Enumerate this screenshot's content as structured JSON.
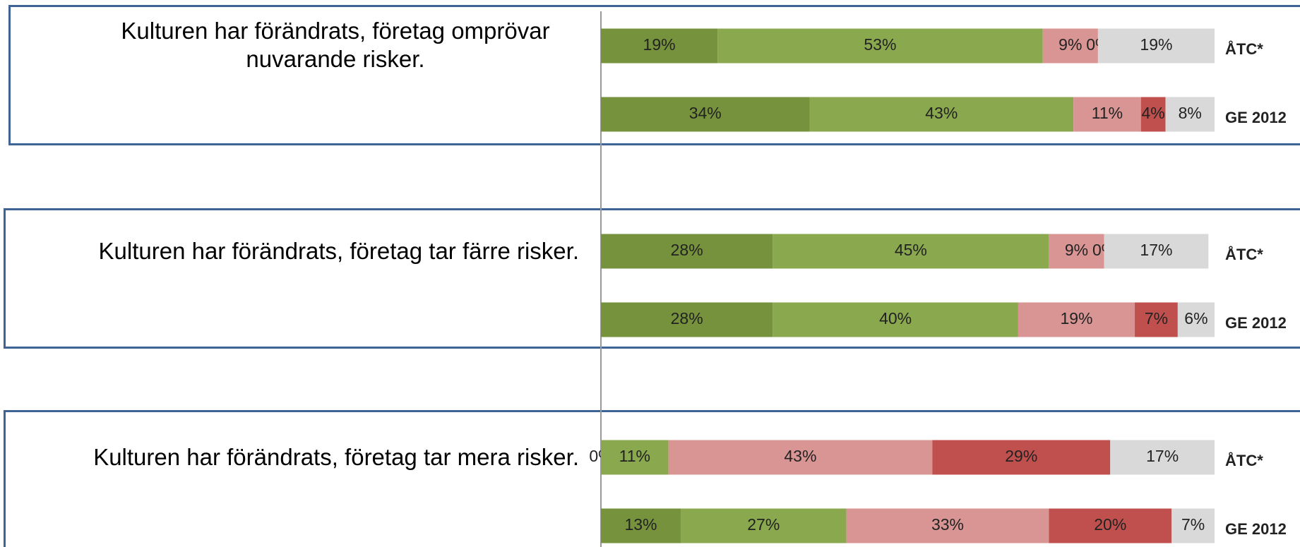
{
  "chart_data": {
    "type": "stacked-bar",
    "groups": [
      "Kulturen har förändrats, företag omprövar nuvarande risker.",
      "Kulturen har förändrats, företag tar färre risker.",
      "Kulturen har förändrats, företag tar mera risker."
    ],
    "categories": [
      "ÅTC*",
      "GE 2012",
      "ÅTC*",
      "GE 2012",
      "ÅTC*",
      "GE 2012"
    ],
    "xlim": [
      0,
      100
    ],
    "series": [
      {
        "color": "#76923c",
        "values": [
          19,
          34,
          28,
          28,
          0,
          13
        ],
        "value_labels": [
          "19%",
          "34%",
          "28%",
          "28%",
          "0%",
          "13%"
        ]
      },
      {
        "color": "#8aa84e",
        "values": [
          53,
          43,
          45,
          40,
          11,
          27
        ],
        "value_labels": [
          "53%",
          "43%",
          "45%",
          "40%",
          "11%",
          "27%"
        ]
      },
      {
        "color": "#d99594",
        "values": [
          9,
          11,
          9,
          19,
          43,
          33
        ],
        "value_labels": [
          "9%",
          "11%",
          "9%",
          "19%",
          "43%",
          "33%"
        ]
      },
      {
        "color": "#c0504d",
        "values": [
          0,
          4,
          0,
          7,
          29,
          20
        ],
        "value_labels": [
          "0%",
          "4%",
          "0%",
          "7%",
          "29%",
          "20%"
        ]
      },
      {
        "color": "#d9d9d9",
        "values": [
          19,
          8,
          17,
          6,
          17,
          7
        ],
        "value_labels": [
          "19%",
          "8%",
          "17%",
          "6%",
          "17%",
          "7%"
        ]
      }
    ]
  }
}
